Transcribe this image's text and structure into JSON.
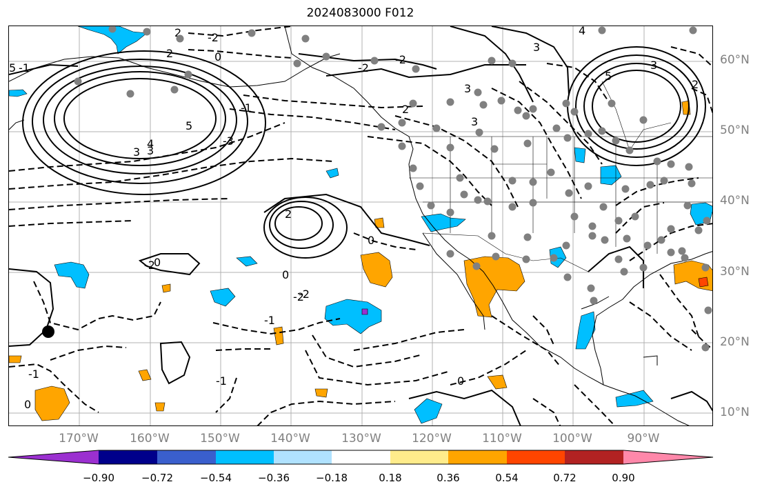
{
  "title": "2024083000 F012",
  "lat_labels": [
    "60°N",
    "50°N",
    "40°N",
    "30°N",
    "20°N",
    "10°N"
  ],
  "lon_labels": [
    "170°W",
    "160°W",
    "150°W",
    "140°W",
    "130°W",
    "120°W",
    "110°W",
    "100°W",
    "90°W"
  ],
  "contour_labels": [
    "2",
    "-2",
    "0",
    "2",
    "-2",
    "3",
    "-2",
    "4",
    "2",
    "2",
    "5",
    "3",
    "5",
    "4",
    "3",
    "-3",
    "-1",
    "3",
    "-2",
    "5",
    "3",
    "2",
    "-2",
    "0",
    "0",
    "-2",
    "-1",
    "-1",
    "0",
    "0",
    "-1",
    "-1",
    "0",
    "3"
  ],
  "colorbar": {
    "ticks": [
      "−0.90",
      "−0.72",
      "−0.54",
      "−0.36",
      "−0.18",
      "0.18",
      "0.36",
      "0.54",
      "0.72",
      "0.90"
    ],
    "colors": [
      "#9b30d0",
      "#00008b",
      "#3a5fcd",
      "#00bfff",
      "#b0e2ff",
      "#ffffff",
      "#ffec8b",
      "#ffa500",
      "#ff4500",
      "#b22222",
      "#ff88aa"
    ]
  },
  "colors": {
    "gray_marker": "#808080",
    "contour": "#000000",
    "grid": "#aaaaaa"
  }
}
